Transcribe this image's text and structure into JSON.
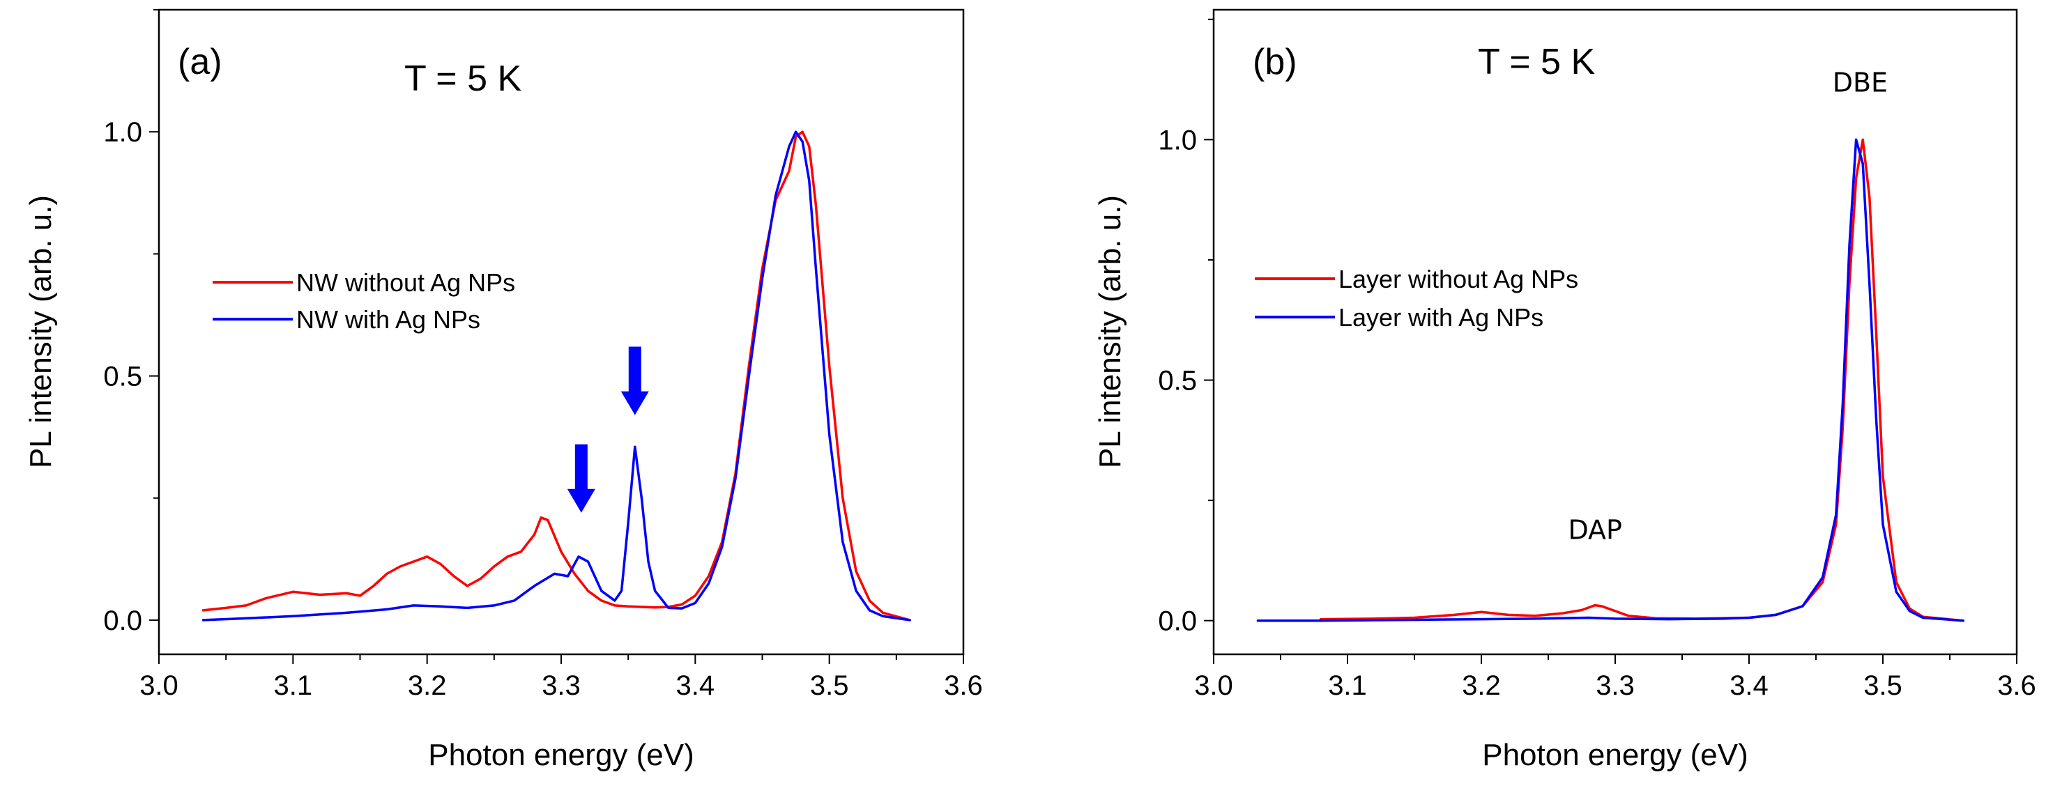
{
  "chart_data": [
    {
      "type": "line",
      "panel_label": "(a)",
      "condition": "T = 5 K",
      "xlabel": "Photon energy (eV)",
      "ylabel": "PL intensity (arb. u.)",
      "xlim": [
        3.0,
        3.6
      ],
      "ylim": [
        -0.07,
        1.25
      ],
      "xticks": [
        3.0,
        3.1,
        3.2,
        3.3,
        3.4,
        3.5,
        3.6
      ],
      "xtick_labels": [
        "3.0",
        "3.1",
        "3.2",
        "3.3",
        "3.4",
        "3.5",
        "3.6"
      ],
      "yticks": [
        0.0,
        0.5,
        1.0
      ],
      "ytick_labels": [
        "0.0",
        "0.5",
        "1.0"
      ],
      "legend_placement": "center-left",
      "series": [
        {
          "name": "NW without Ag NPs",
          "color": "#ff0000",
          "x": [
            3.033,
            3.05,
            3.065,
            3.08,
            3.1,
            3.12,
            3.14,
            3.15,
            3.16,
            3.17,
            3.18,
            3.19,
            3.2,
            3.21,
            3.22,
            3.23,
            3.24,
            3.25,
            3.26,
            3.27,
            3.28,
            3.285,
            3.29,
            3.3,
            3.31,
            3.32,
            3.33,
            3.34,
            3.35,
            3.36,
            3.37,
            3.38,
            3.39,
            3.4,
            3.41,
            3.42,
            3.43,
            3.44,
            3.45,
            3.46,
            3.47,
            3.475,
            3.48,
            3.485,
            3.49,
            3.5,
            3.51,
            3.52,
            3.53,
            3.54,
            3.56
          ],
          "values": [
            0.02,
            0.025,
            0.03,
            0.045,
            0.058,
            0.052,
            0.055,
            0.05,
            0.07,
            0.095,
            0.11,
            0.12,
            0.13,
            0.115,
            0.09,
            0.07,
            0.085,
            0.11,
            0.13,
            0.14,
            0.175,
            0.21,
            0.205,
            0.14,
            0.095,
            0.06,
            0.04,
            0.03,
            0.028,
            0.027,
            0.026,
            0.027,
            0.032,
            0.05,
            0.09,
            0.16,
            0.3,
            0.52,
            0.72,
            0.86,
            0.92,
            0.99,
            1.0,
            0.97,
            0.85,
            0.52,
            0.25,
            0.1,
            0.04,
            0.015,
            0.0
          ]
        },
        {
          "name": "NW with Ag NPs",
          "color": "#0000ff",
          "x": [
            3.033,
            3.06,
            3.1,
            3.14,
            3.17,
            3.19,
            3.21,
            3.23,
            3.25,
            3.265,
            3.28,
            3.295,
            3.305,
            3.313,
            3.32,
            3.33,
            3.34,
            3.345,
            3.35,
            3.355,
            3.36,
            3.365,
            3.37,
            3.38,
            3.39,
            3.4,
            3.41,
            3.42,
            3.43,
            3.44,
            3.45,
            3.46,
            3.47,
            3.475,
            3.48,
            3.485,
            3.49,
            3.5,
            3.51,
            3.52,
            3.53,
            3.54,
            3.56
          ],
          "values": [
            0.0,
            0.003,
            0.008,
            0.015,
            0.022,
            0.03,
            0.028,
            0.025,
            0.03,
            0.04,
            0.07,
            0.095,
            0.09,
            0.13,
            0.12,
            0.06,
            0.04,
            0.06,
            0.2,
            0.355,
            0.25,
            0.12,
            0.06,
            0.025,
            0.024,
            0.035,
            0.075,
            0.15,
            0.29,
            0.5,
            0.7,
            0.87,
            0.97,
            1.0,
            0.98,
            0.9,
            0.72,
            0.38,
            0.16,
            0.06,
            0.02,
            0.008,
            0.0
          ]
        }
      ],
      "annotations": [
        {
          "type": "arrow",
          "color": "#0000ff",
          "x": 3.315,
          "y_top": 0.36,
          "y_tip": 0.22
        },
        {
          "type": "arrow",
          "color": "#0000ff",
          "x": 3.355,
          "y_top": 0.56,
          "y_tip": 0.42
        }
      ]
    },
    {
      "type": "line",
      "panel_label": "(b)",
      "condition": "T = 5 K",
      "xlabel": "Photon energy (eV)",
      "ylabel": "PL intensity (arb. u.)",
      "xlim": [
        3.0,
        3.6
      ],
      "ylim": [
        -0.07,
        1.27
      ],
      "xticks": [
        3.0,
        3.1,
        3.2,
        3.3,
        3.4,
        3.5,
        3.6
      ],
      "xtick_labels": [
        "3.0",
        "3.1",
        "3.2",
        "3.3",
        "3.4",
        "3.5",
        "3.6"
      ],
      "yticks": [
        0.0,
        0.5,
        1.0
      ],
      "ytick_labels": [
        "0.0",
        "0.5",
        "1.0"
      ],
      "legend_placement": "center-left",
      "series": [
        {
          "name": "Layer without Ag NPs",
          "color": "#ff0000",
          "x": [
            3.08,
            3.12,
            3.15,
            3.18,
            3.2,
            3.22,
            3.24,
            3.26,
            3.275,
            3.285,
            3.29,
            3.3,
            3.31,
            3.33,
            3.36,
            3.4,
            3.42,
            3.44,
            3.455,
            3.465,
            3.47,
            3.475,
            3.48,
            3.485,
            3.49,
            3.495,
            3.5,
            3.51,
            3.52,
            3.53,
            3.56
          ],
          "values": [
            0.003,
            0.004,
            0.006,
            0.012,
            0.018,
            0.012,
            0.01,
            0.015,
            0.022,
            0.032,
            0.03,
            0.02,
            0.01,
            0.005,
            0.004,
            0.006,
            0.012,
            0.03,
            0.08,
            0.2,
            0.4,
            0.7,
            0.92,
            1.0,
            0.88,
            0.6,
            0.3,
            0.08,
            0.025,
            0.008,
            0.0
          ]
        },
        {
          "name": "Layer with Ag NPs",
          "color": "#0000ff",
          "x": [
            3.033,
            3.08,
            3.12,
            3.16,
            3.2,
            3.24,
            3.28,
            3.3,
            3.34,
            3.38,
            3.4,
            3.42,
            3.44,
            3.455,
            3.465,
            3.47,
            3.475,
            3.48,
            3.485,
            3.49,
            3.495,
            3.5,
            3.51,
            3.52,
            3.53,
            3.56
          ],
          "values": [
            0.0,
            0.0,
            0.001,
            0.002,
            0.003,
            0.004,
            0.006,
            0.004,
            0.003,
            0.004,
            0.006,
            0.012,
            0.03,
            0.09,
            0.22,
            0.45,
            0.78,
            1.0,
            0.95,
            0.7,
            0.42,
            0.2,
            0.06,
            0.02,
            0.006,
            0.0
          ]
        }
      ],
      "annotations": [
        {
          "type": "text",
          "text": "DAP",
          "x": 3.285,
          "y": 0.17
        },
        {
          "type": "text",
          "text": "DBE",
          "x": 3.483,
          "y": 1.1
        }
      ]
    }
  ]
}
